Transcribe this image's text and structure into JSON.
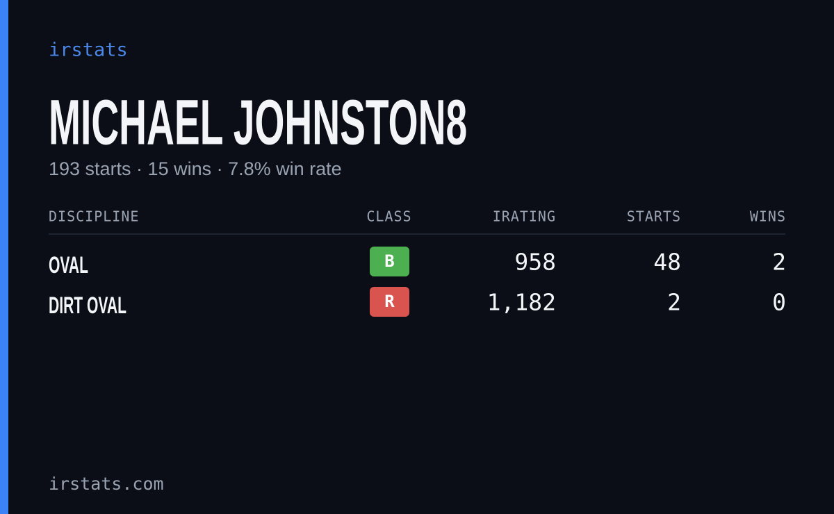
{
  "brand": "irstats",
  "driver": {
    "name": "MICHAEL JOHNSTON8",
    "summary": "193 starts · 15 wins · 7.8% win rate"
  },
  "table": {
    "headers": [
      "DISCIPLINE",
      "CLASS",
      "IRATING",
      "STARTS",
      "WINS"
    ],
    "rows": [
      {
        "discipline": "OVAL",
        "class": "B",
        "class_color": "#4caf50",
        "irating": "958",
        "starts": "48",
        "wins": "2"
      },
      {
        "discipline": "DIRT OVAL",
        "class": "R",
        "class_color": "#d9534f",
        "irating": "1,182",
        "starts": "2",
        "wins": "0"
      }
    ]
  },
  "footer": "irstats.com"
}
